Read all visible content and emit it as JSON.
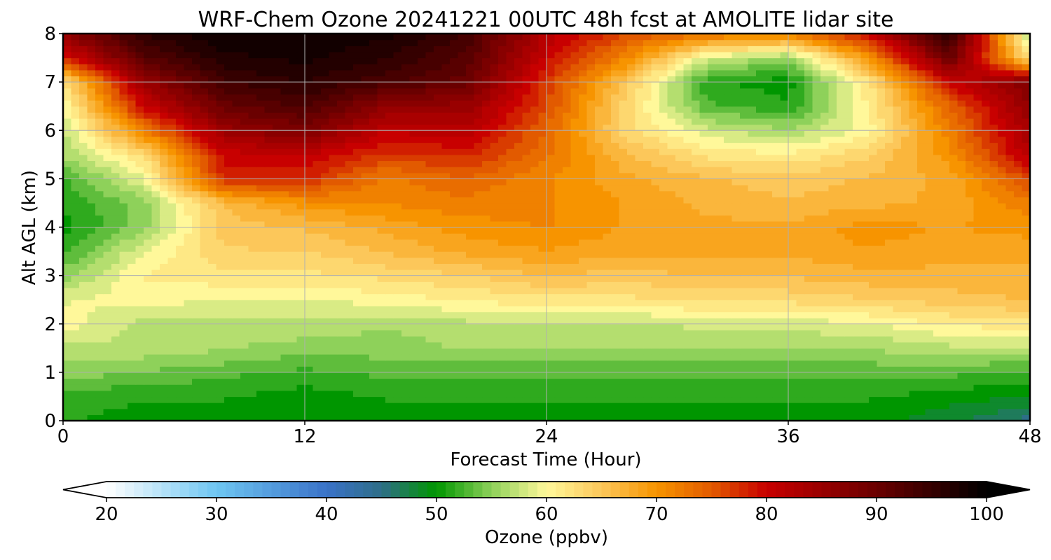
{
  "chart_data": {
    "type": "heatmap",
    "title": "WRF-Chem Ozone  20241221 00UTC 48h fcst at AMOLITE lidar site",
    "xlabel": "Forecast Time (Hour)",
    "ylabel": "Alt AGL (km)",
    "xlim": [
      0,
      48
    ],
    "ylim": [
      0,
      8
    ],
    "x_ticks": [
      0,
      12,
      24,
      36,
      48
    ],
    "y_ticks": [
      0,
      1,
      2,
      3,
      4,
      5,
      6,
      7,
      8
    ],
    "grid": true,
    "colorbar": {
      "label": "Ozone  (ppbv)",
      "range": [
        20,
        100
      ],
      "ticks": [
        20,
        30,
        40,
        50,
        60,
        70,
        80,
        90,
        100
      ],
      "extend": "both",
      "orientation": "horizontal",
      "placement": "bottom",
      "colormap_stops": [
        {
          "value": 20,
          "color": "#ffffff"
        },
        {
          "value": 30,
          "color": "#6ec6f2"
        },
        {
          "value": 40,
          "color": "#3a72c8"
        },
        {
          "value": 45,
          "color": "#2e6e88"
        },
        {
          "value": 50,
          "color": "#009600"
        },
        {
          "value": 55,
          "color": "#8ed15a"
        },
        {
          "value": 60,
          "color": "#fff89a"
        },
        {
          "value": 65,
          "color": "#fcc75a"
        },
        {
          "value": 70,
          "color": "#f79400"
        },
        {
          "value": 75,
          "color": "#e25a00"
        },
        {
          "value": 80,
          "color": "#c80000"
        },
        {
          "value": 90,
          "color": "#6a0000"
        },
        {
          "value": 100,
          "color": "#000000"
        }
      ]
    },
    "x": [
      0,
      4,
      8,
      12,
      16,
      20,
      24,
      28,
      32,
      36,
      40,
      44,
      48
    ],
    "y": [
      0,
      0.5,
      1,
      1.5,
      2,
      2.5,
      3,
      3.5,
      4,
      4.5,
      5,
      5.5,
      6,
      6.5,
      7,
      7.5,
      8
    ],
    "z": [
      [
        51,
        50,
        50,
        50,
        50,
        50,
        50,
        50,
        50,
        50,
        50,
        48,
        45
      ],
      [
        52,
        51,
        51,
        50,
        51,
        51,
        51,
        51,
        51,
        51,
        51,
        50,
        49
      ],
      [
        55,
        54,
        53,
        52,
        53,
        53,
        53,
        53,
        53,
        53,
        53,
        53,
        52
      ],
      [
        57,
        57,
        56,
        55,
        55,
        56,
        56,
        56,
        56,
        56,
        56,
        57,
        57
      ],
      [
        60,
        57,
        57,
        57,
        56,
        57,
        57,
        57,
        58,
        58,
        59,
        61,
        62
      ],
      [
        59,
        60,
        59,
        59,
        60,
        61,
        62,
        62,
        63,
        63,
        64,
        65,
        66
      ],
      [
        55,
        61,
        62,
        62,
        63,
        64,
        66,
        65,
        66,
        66,
        67,
        67,
        67
      ],
      [
        52,
        59,
        64,
        64,
        66,
        68,
        69,
        68,
        68,
        68,
        69,
        68,
        68
      ],
      [
        50,
        55,
        65,
        66,
        68,
        70,
        71,
        69,
        68,
        68,
        70,
        69,
        70
      ],
      [
        51,
        55,
        66,
        70,
        71,
        72,
        71,
        69,
        67,
        66,
        67,
        68,
        72
      ],
      [
        52,
        59,
        78,
        78,
        72,
        74,
        71,
        68,
        66,
        65,
        66,
        68,
        76
      ],
      [
        56,
        63,
        80,
        81,
        77,
        78,
        73,
        66,
        62,
        61,
        64,
        70,
        82
      ],
      [
        57,
        72,
        85,
        88,
        81,
        82,
        74,
        63,
        58,
        56,
        60,
        72,
        84
      ],
      [
        59,
        80,
        90,
        93,
        86,
        85,
        76,
        63,
        53,
        51,
        61,
        74,
        86
      ],
      [
        62,
        85,
        94,
        96,
        93,
        90,
        77,
        65,
        51,
        50,
        62,
        80,
        88
      ],
      [
        78,
        92,
        97,
        98,
        96,
        92,
        80,
        71,
        58,
        55,
        70,
        90,
        62
      ],
      [
        86,
        96,
        99,
        99,
        98,
        94,
        82,
        76,
        73,
        72,
        80,
        96,
        56
      ]
    ]
  }
}
